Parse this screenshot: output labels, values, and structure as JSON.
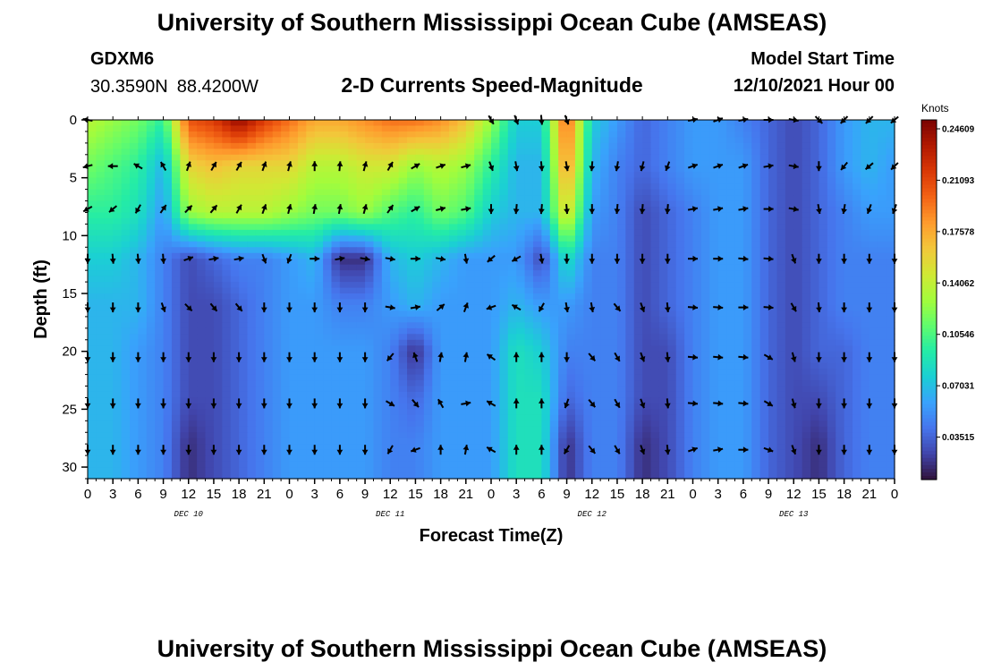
{
  "header": {
    "title": "University of Southern Mississippi Ocean Cube (AMSEAS)",
    "station": "GDXM6",
    "latitude": "30.3590N",
    "longitude": "88.4200W",
    "subtitle": "2-D Currents Speed-Magnitude",
    "model_start_label": "Model Start Time",
    "model_start_value": "12/10/2021 Hour 00"
  },
  "footer": {
    "title": "University of Southern Mississippi Ocean Cube (AMSEAS)"
  },
  "chart_data": {
    "type": "heatmap",
    "title": "2-D Currents Speed-Magnitude",
    "xlabel": "Forecast Time(Z)",
    "ylabel": "Depth (ft)",
    "xlim": [
      0,
      96
    ],
    "ylim": [
      31,
      0
    ],
    "x_ticks": [
      "0",
      "3",
      "6",
      "9",
      "12",
      "15",
      "18",
      "21",
      "0",
      "3",
      "6",
      "9",
      "12",
      "15",
      "18",
      "21",
      "0",
      "3",
      "6",
      "9",
      "12",
      "15",
      "18",
      "21",
      "0",
      "3",
      "6",
      "9",
      "12",
      "15",
      "18",
      "21",
      "0"
    ],
    "y_ticks": [
      "0",
      "5",
      "10",
      "15",
      "20",
      "25",
      "30"
    ],
    "day_labels": [
      {
        "label": "DEC 10",
        "hour": 12
      },
      {
        "label": "DEC 11",
        "hour": 36
      },
      {
        "label": "DEC 12",
        "hour": 60
      },
      {
        "label": "DEC 13",
        "hour": 84
      }
    ],
    "colorbar": {
      "unit": "Knots",
      "tick_labels": [
        "0.24609",
        "0.21093",
        "0.17578",
        "0.14062",
        "0.10546",
        "0.07031",
        "0.03515"
      ],
      "range": [
        0,
        0.24609
      ],
      "colors": [
        "#30123b",
        "#4145ab",
        "#4675ed",
        "#39a2fc",
        "#1bcfd4",
        "#24eca6",
        "#61fc6c",
        "#a4fc3b",
        "#d1e834",
        "#f3c63a",
        "#fe9b2d",
        "#f36315",
        "#d93806",
        "#b11901",
        "#7a0402"
      ]
    },
    "grid": false,
    "legend": "right",
    "speed_rows": [
      {
        "depth": 0,
        "values": [
          0.13,
          0.12,
          0.11,
          0.09,
          0.2,
          0.21,
          0.24,
          0.21,
          0.19,
          0.17,
          0.17,
          0.18,
          0.19,
          0.19,
          0.18,
          0.16,
          0.12,
          0.07,
          0.07,
          0.2,
          0.07,
          0.05,
          0.03,
          0.04,
          0.05,
          0.05,
          0.04,
          0.03,
          0.02,
          0.03,
          0.05,
          0.06,
          0.06
        ]
      },
      {
        "depth": 4,
        "values": [
          0.11,
          0.1,
          0.09,
          0.06,
          0.15,
          0.16,
          0.15,
          0.15,
          0.15,
          0.13,
          0.13,
          0.14,
          0.14,
          0.12,
          0.13,
          0.12,
          0.09,
          0.06,
          0.06,
          0.18,
          0.06,
          0.04,
          0.03,
          0.04,
          0.05,
          0.05,
          0.05,
          0.03,
          0.02,
          0.03,
          0.05,
          0.06,
          0.05
        ]
      },
      {
        "depth": 8,
        "values": [
          0.09,
          0.09,
          0.08,
          0.05,
          0.12,
          0.13,
          0.13,
          0.13,
          0.12,
          0.11,
          0.11,
          0.12,
          0.1,
          0.09,
          0.11,
          0.1,
          0.07,
          0.06,
          0.06,
          0.15,
          0.05,
          0.04,
          0.02,
          0.03,
          0.04,
          0.05,
          0.05,
          0.03,
          0.02,
          0.03,
          0.04,
          0.05,
          0.05
        ]
      },
      {
        "depth": 12,
        "values": [
          0.07,
          0.07,
          0.06,
          0.04,
          0.02,
          0.03,
          0.04,
          0.04,
          0.05,
          0.06,
          0.01,
          0.01,
          0.06,
          0.07,
          0.06,
          0.05,
          0.05,
          0.05,
          0.02,
          0.08,
          0.04,
          0.04,
          0.02,
          0.03,
          0.04,
          0.05,
          0.05,
          0.03,
          0.02,
          0.03,
          0.04,
          0.04,
          0.04
        ]
      },
      {
        "depth": 16,
        "values": [
          0.06,
          0.06,
          0.06,
          0.04,
          0.02,
          0.02,
          0.03,
          0.04,
          0.05,
          0.05,
          0.04,
          0.04,
          0.05,
          0.06,
          0.05,
          0.05,
          0.05,
          0.06,
          0.05,
          0.05,
          0.04,
          0.04,
          0.02,
          0.03,
          0.04,
          0.05,
          0.05,
          0.03,
          0.02,
          0.03,
          0.04,
          0.04,
          0.04
        ]
      },
      {
        "depth": 20,
        "values": [
          0.06,
          0.06,
          0.05,
          0.04,
          0.02,
          0.02,
          0.03,
          0.04,
          0.05,
          0.05,
          0.05,
          0.05,
          0.04,
          0.01,
          0.05,
          0.05,
          0.05,
          0.08,
          0.07,
          0.04,
          0.04,
          0.04,
          0.02,
          0.02,
          0.04,
          0.05,
          0.05,
          0.03,
          0.02,
          0.03,
          0.03,
          0.04,
          0.04
        ]
      },
      {
        "depth": 24,
        "values": [
          0.06,
          0.06,
          0.05,
          0.04,
          0.02,
          0.02,
          0.03,
          0.04,
          0.05,
          0.05,
          0.05,
          0.05,
          0.04,
          0.03,
          0.05,
          0.05,
          0.05,
          0.08,
          0.08,
          0.03,
          0.04,
          0.04,
          0.02,
          0.02,
          0.04,
          0.05,
          0.05,
          0.03,
          0.02,
          0.02,
          0.03,
          0.04,
          0.04
        ]
      },
      {
        "depth": 28,
        "values": [
          0.06,
          0.06,
          0.05,
          0.04,
          0.01,
          0.02,
          0.03,
          0.04,
          0.05,
          0.05,
          0.05,
          0.05,
          0.04,
          0.04,
          0.05,
          0.05,
          0.05,
          0.08,
          0.08,
          0.01,
          0.04,
          0.04,
          0.01,
          0.02,
          0.04,
          0.05,
          0.05,
          0.03,
          0.02,
          0.01,
          0.03,
          0.04,
          0.04
        ]
      },
      {
        "depth": 31,
        "values": [
          0.06,
          0.06,
          0.05,
          0.04,
          0.01,
          0.02,
          0.03,
          0.04,
          0.05,
          0.05,
          0.05,
          0.05,
          0.04,
          0.04,
          0.05,
          0.05,
          0.05,
          0.08,
          0.08,
          0.01,
          0.04,
          0.04,
          0.01,
          0.02,
          0.04,
          0.05,
          0.05,
          0.03,
          0.02,
          0.01,
          0.03,
          0.04,
          0.04
        ]
      }
    ],
    "arrows": {
      "hours": [
        0,
        3,
        6,
        9,
        12,
        15,
        18,
        21,
        24,
        27,
        30,
        33,
        36,
        39,
        42,
        45,
        48,
        51,
        54,
        57,
        60,
        63,
        66,
        69,
        72,
        75,
        78,
        81,
        84,
        87,
        90,
        93,
        96
      ],
      "rows": [
        {
          "depth": 0,
          "dir_deg": [
            280,
            null,
            null,
            null,
            null,
            null,
            null,
            null,
            null,
            null,
            null,
            null,
            null,
            null,
            null,
            null,
            150,
            160,
            175,
            160,
            null,
            null,
            null,
            null,
            80,
            70,
            80,
            90,
            100,
            135,
            225,
            225,
            230
          ]
        },
        {
          "depth": 4,
          "dir_deg": [
            255,
            270,
            300,
            330,
            20,
            30,
            30,
            20,
            15,
            0,
            5,
            15,
            30,
            60,
            70,
            75,
            160,
            170,
            175,
            170,
            185,
            190,
            195,
            200,
            70,
            70,
            70,
            80,
            100,
            180,
            220,
            230,
            225
          ]
        },
        {
          "depth": 7.7,
          "dir_deg": [
            240,
            230,
            210,
            35,
            45,
            40,
            30,
            20,
            15,
            10,
            10,
            15,
            35,
            60,
            75,
            80,
            180,
            185,
            185,
            175,
            180,
            185,
            185,
            185,
            80,
            80,
            80,
            90,
            100,
            170,
            190,
            200,
            200
          ]
        },
        {
          "depth": 12,
          "dir_deg": [
            180,
            175,
            175,
            175,
            70,
            80,
            80,
            160,
            200,
            90,
            80,
            100,
            100,
            90,
            100,
            170,
            230,
            240,
            170,
            180,
            180,
            180,
            180,
            180,
            90,
            90,
            95,
            95,
            160,
            180,
            180,
            180,
            180
          ]
        },
        {
          "depth": 16.2,
          "dir_deg": [
            180,
            180,
            180,
            160,
            135,
            140,
            140,
            180,
            180,
            180,
            180,
            180,
            100,
            80,
            50,
            20,
            250,
            300,
            210,
            170,
            170,
            140,
            160,
            175,
            95,
            95,
            90,
            95,
            150,
            175,
            180,
            180,
            180
          ]
        },
        {
          "depth": 20.5,
          "dir_deg": [
            180,
            180,
            180,
            180,
            180,
            180,
            180,
            180,
            180,
            180,
            180,
            180,
            220,
            340,
            10,
            10,
            305,
            0,
            0,
            180,
            140,
            150,
            160,
            175,
            95,
            95,
            95,
            120,
            165,
            180,
            180,
            180,
            180
          ]
        },
        {
          "depth": 24.5,
          "dir_deg": [
            180,
            180,
            180,
            180,
            180,
            180,
            180,
            180,
            180,
            180,
            180,
            180,
            120,
            140,
            330,
            80,
            300,
            0,
            0,
            200,
            140,
            150,
            160,
            175,
            95,
            95,
            95,
            120,
            165,
            180,
            180,
            180,
            180
          ]
        },
        {
          "depth": 28.5,
          "dir_deg": [
            180,
            180,
            180,
            180,
            180,
            180,
            180,
            180,
            180,
            180,
            180,
            180,
            210,
            250,
            0,
            10,
            300,
            0,
            0,
            210,
            140,
            150,
            160,
            175,
            70,
            80,
            90,
            110,
            160,
            180,
            180,
            180,
            180
          ]
        }
      ]
    }
  }
}
